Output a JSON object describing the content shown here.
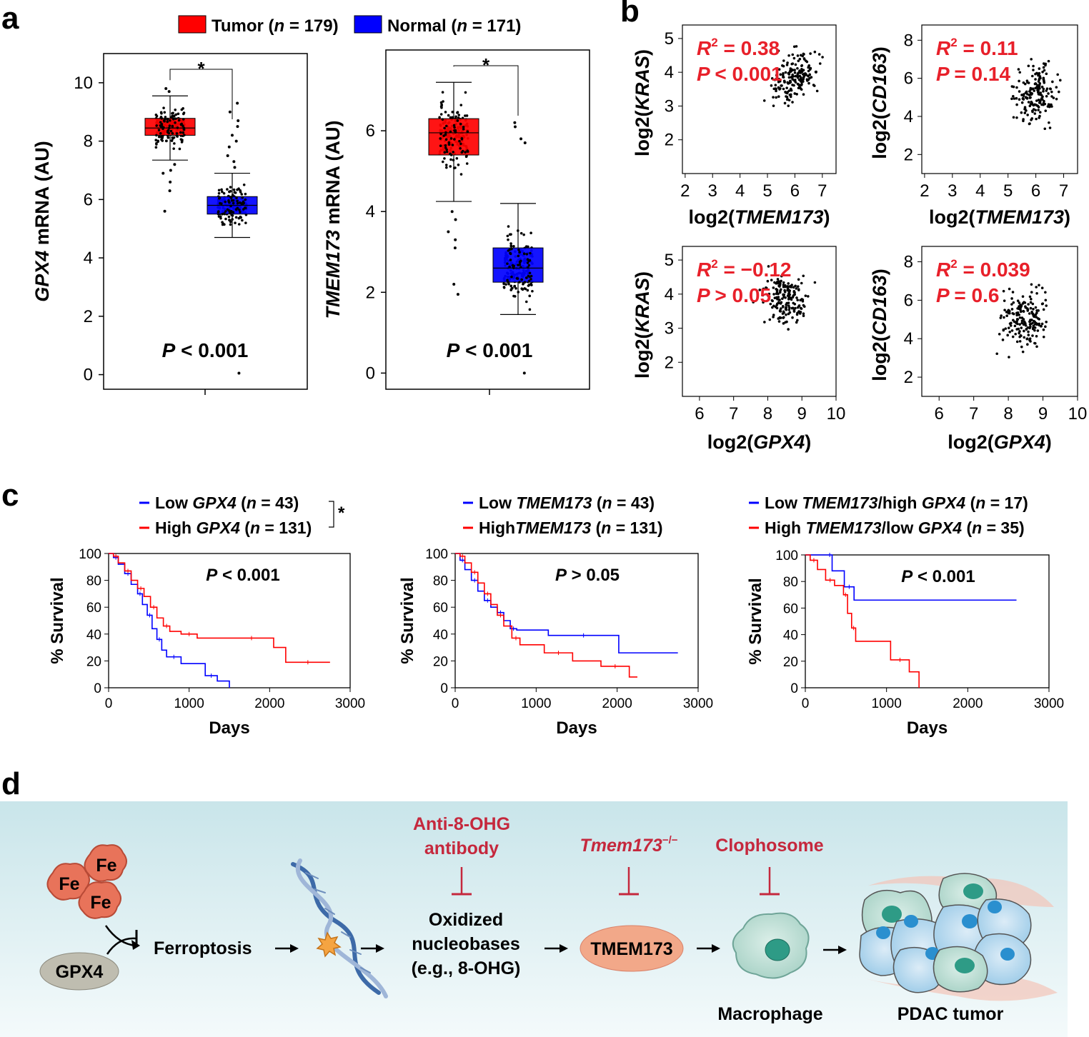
{
  "panel_labels": {
    "a": "a",
    "b": "b",
    "c": "c",
    "d": "d"
  },
  "colors": {
    "tumor": "#ff0000",
    "normal": "#0000ff",
    "annot_red": "#e8202a",
    "inhib_red": "#c5283d",
    "banner": "#d9ecf0"
  },
  "chart_data": [
    {
      "id": "a-left",
      "type": "box",
      "legend": [
        {
          "label": "Tumor (n = 179)",
          "color": "#ff0000"
        },
        {
          "label": "Normal (n = 171)",
          "color": "#0000ff"
        }
      ],
      "ylabel_italic": "GPX4",
      "ylabel_rest": " mRNA (AU)",
      "yticks": [
        "0",
        "2",
        "4",
        "6",
        "8",
        "10"
      ],
      "ylim": [
        -0.5,
        11
      ],
      "groups": [
        {
          "name": "Tumor",
          "color": "#ff0000",
          "min": 7.35,
          "q1": 8.2,
          "median": 8.45,
          "q3": 8.78,
          "max": 9.55,
          "outliers": [
            5.6,
            6.3,
            6.6,
            6.9,
            7.0,
            7.2,
            9.7,
            9.8
          ]
        },
        {
          "name": "Normal",
          "color": "#0000ff",
          "min": 4.7,
          "q1": 5.5,
          "median": 5.8,
          "q3": 6.1,
          "max": 6.9,
          "outliers": [
            0.05,
            7.1,
            7.3,
            7.5,
            7.8,
            8.0,
            8.2,
            8.5,
            8.7,
            9.0,
            9.3
          ]
        }
      ],
      "significance": "*",
      "pvalue_label": "P < 0.001"
    },
    {
      "id": "a-right",
      "type": "box",
      "ylabel_italic": "TMEM173",
      "ylabel_rest": " mRNA (AU)",
      "yticks": [
        "0",
        "2",
        "4",
        "6"
      ],
      "ylim": [
        -0.4,
        8.0
      ],
      "groups": [
        {
          "name": "Tumor",
          "color": "#ff0000",
          "min": 4.25,
          "q1": 5.4,
          "median": 5.95,
          "q3": 6.3,
          "max": 7.2,
          "outliers": [
            1.95,
            2.2,
            3.1,
            3.3,
            3.5,
            3.8,
            4.0
          ]
        },
        {
          "name": "Normal",
          "color": "#0000ff",
          "min": 1.45,
          "q1": 2.25,
          "median": 2.6,
          "q3": 3.1,
          "max": 4.2,
          "outliers": [
            0.0,
            5.7,
            5.8,
            6.1,
            6.2
          ]
        }
      ],
      "significance": "*",
      "pvalue_label": "P < 0.001"
    },
    {
      "id": "b1",
      "type": "scatter",
      "xlabel_pre": "log2(",
      "xlabel_italic": "TMEM173",
      "xlabel_post": ")",
      "ylabel_pre": "log2(",
      "ylabel_italic": "KRAS",
      "ylabel_post": ")",
      "xticks": [
        "2",
        "3",
        "4",
        "5",
        "6",
        "7"
      ],
      "yticks": [
        "2",
        "3",
        "4",
        "5"
      ],
      "xlim": [
        1.9,
        7.5
      ],
      "ylim": [
        1.0,
        5.4
      ],
      "r2_label": "= 0.38",
      "p_label": "< 0.001",
      "center": [
        6.0,
        3.9
      ],
      "spread": [
        0.6,
        0.55
      ],
      "slope": 0.4,
      "n": 180,
      "seed": 11
    },
    {
      "id": "b2",
      "type": "scatter",
      "xlabel_pre": "log2(",
      "xlabel_italic": "TMEM173",
      "xlabel_post": ")",
      "ylabel_pre": "log2(",
      "ylabel_italic": "CD163",
      "ylabel_post": ")",
      "xticks": [
        "2",
        "3",
        "4",
        "5",
        "6",
        "7"
      ],
      "yticks": [
        "2",
        "4",
        "6",
        "8"
      ],
      "xlim": [
        1.9,
        7.5
      ],
      "ylim": [
        1.0,
        8.8
      ],
      "r2_label": "= 0.11",
      "p_label": "= 0.14",
      "center": [
        6.0,
        5.2
      ],
      "spread": [
        0.6,
        1.1
      ],
      "slope": 0.4,
      "n": 180,
      "seed": 23
    },
    {
      "id": "b3",
      "type": "scatter",
      "xlabel_pre": "log2(",
      "xlabel_italic": "GPX4",
      "xlabel_post": ")",
      "ylabel_pre": "log2(",
      "ylabel_italic": "KRAS",
      "ylabel_post": ")",
      "xticks": [
        "6",
        "7",
        "8",
        "9",
        "10"
      ],
      "yticks": [
        "2",
        "3",
        "4",
        "5"
      ],
      "xlim": [
        5.5,
        10.0
      ],
      "ylim": [
        1.0,
        5.4
      ],
      "r2_label": "= −0.12",
      "p_label": "> 0.05",
      "center": [
        8.5,
        3.85
      ],
      "spread": [
        0.5,
        0.55
      ],
      "slope": -0.1,
      "n": 180,
      "seed": 37
    },
    {
      "id": "b4",
      "type": "scatter",
      "xlabel_pre": "log2(",
      "xlabel_italic": "GPX4",
      "xlabel_post": ")",
      "ylabel_pre": "log2(",
      "ylabel_italic": "CD163",
      "ylabel_post": ")",
      "xticks": [
        "6",
        "7",
        "8",
        "9",
        "10"
      ],
      "yticks": [
        "2",
        "4",
        "6",
        "8"
      ],
      "xlim": [
        5.5,
        10.0
      ],
      "ylim": [
        1.0,
        8.8
      ],
      "r2_label": "= 0.039",
      "p_label": "= 0.6",
      "center": [
        8.5,
        5.0
      ],
      "spread": [
        0.5,
        1.1
      ],
      "slope": 0.1,
      "n": 180,
      "seed": 51
    },
    {
      "id": "c1",
      "type": "line",
      "legend": [
        {
          "color": "#0000ff",
          "parts": [
            [
              "Low ",
              false
            ],
            [
              "GPX4",
              true
            ],
            [
              " (",
              false
            ],
            [
              "n",
              true
            ],
            [
              " = 43)",
              false
            ]
          ]
        },
        {
          "color": "#ff0000",
          "parts": [
            [
              "High ",
              false
            ],
            [
              "GPX4",
              true
            ],
            [
              " (",
              false
            ],
            [
              "n",
              true
            ],
            [
              " = 131)",
              false
            ]
          ]
        }
      ],
      "bracket_star": "*",
      "xticks": [
        "0",
        "1000",
        "2000",
        "3000"
      ],
      "yticks": [
        "0",
        "20",
        "40",
        "60",
        "80",
        "100"
      ],
      "xlabel": "Days",
      "ylabel": "% Survival",
      "xlim": [
        0,
        3000
      ],
      "ylim": [
        0,
        100
      ],
      "pvalue_label": "P < 0.001",
      "series": [
        {
          "name": "Low GPX4",
          "color": "#0000ff",
          "x": [
            0,
            60,
            120,
            200,
            280,
            360,
            420,
            480,
            540,
            600,
            660,
            720,
            900,
            1200,
            1350,
            1500
          ],
          "y": [
            100,
            97,
            92,
            85,
            77,
            70,
            62,
            54,
            44,
            36,
            28,
            23,
            18,
            9,
            5,
            0
          ]
        },
        {
          "name": "High GPX4",
          "color": "#ff0000",
          "x": [
            0,
            60,
            120,
            200,
            280,
            360,
            440,
            520,
            600,
            680,
            760,
            900,
            1100,
            1500,
            2050,
            2200,
            2750
          ],
          "y": [
            100,
            98,
            93,
            87,
            80,
            74,
            68,
            60,
            52,
            46,
            42,
            40,
            37,
            37,
            30,
            19,
            19
          ]
        }
      ]
    },
    {
      "id": "c2",
      "type": "line",
      "legend": [
        {
          "color": "#0000ff",
          "parts": [
            [
              "Low ",
              false
            ],
            [
              "TMEM173",
              true
            ],
            [
              " (",
              false
            ],
            [
              "n",
              true
            ],
            [
              " = 43)",
              false
            ]
          ]
        },
        {
          "color": "#ff0000",
          "parts": [
            [
              "High",
              false
            ],
            [
              "TMEM173",
              true
            ],
            [
              " (",
              false
            ],
            [
              "n",
              true
            ],
            [
              " = 131)",
              false
            ]
          ]
        }
      ],
      "xticks": [
        "0",
        "1000",
        "2000",
        "3000"
      ],
      "yticks": [
        "0",
        "20",
        "40",
        "60",
        "80",
        "100"
      ],
      "xlabel": "Days",
      "ylabel": "% Survival",
      "xlim": [
        0,
        3000
      ],
      "ylim": [
        0,
        100
      ],
      "pvalue_label": "P > 0.05",
      "series": [
        {
          "name": "Low TMEM173",
          "color": "#0000ff",
          "x": [
            0,
            60,
            120,
            200,
            280,
            360,
            440,
            520,
            600,
            680,
            760,
            1150,
            2020,
            2750
          ],
          "y": [
            100,
            95,
            88,
            80,
            72,
            65,
            60,
            56,
            50,
            44,
            43,
            39,
            26,
            26
          ]
        },
        {
          "name": "High TMEM173",
          "color": "#ff0000",
          "x": [
            0,
            60,
            120,
            200,
            280,
            360,
            440,
            520,
            600,
            700,
            800,
            1100,
            1450,
            1800,
            2150,
            2250
          ],
          "y": [
            100,
            98,
            93,
            86,
            78,
            70,
            62,
            54,
            46,
            37,
            32,
            26,
            20,
            16,
            8,
            8
          ]
        }
      ]
    },
    {
      "id": "c3",
      "type": "line",
      "legend": [
        {
          "color": "#0000ff",
          "parts": [
            [
              "Low ",
              false
            ],
            [
              "TMEM173",
              true
            ],
            [
              "/high ",
              false
            ],
            [
              "GPX4",
              true
            ],
            [
              " (",
              false
            ],
            [
              "n",
              true
            ],
            [
              " = 17)",
              false
            ]
          ]
        },
        {
          "color": "#ff0000",
          "parts": [
            [
              "High ",
              false
            ],
            [
              "TMEM173",
              true
            ],
            [
              "/low ",
              false
            ],
            [
              "GPX4",
              true
            ],
            [
              " (",
              false
            ],
            [
              "n",
              true
            ],
            [
              " = 35)",
              false
            ]
          ]
        }
      ],
      "xticks": [
        "0",
        "1000",
        "2000",
        "3000"
      ],
      "yticks": [
        "0",
        "20",
        "40",
        "60",
        "80",
        "100"
      ],
      "xlabel": "Days",
      "ylabel": "% Survival",
      "xlim": [
        0,
        3000
      ],
      "ylim": [
        0,
        100
      ],
      "pvalue_label": "P < 0.001",
      "series": [
        {
          "name": "Low TMEM173/high GPX4",
          "color": "#0000ff",
          "x": [
            0,
            270,
            330,
            480,
            600,
            2600
          ],
          "y": [
            100,
            100,
            88,
            76,
            66,
            66
          ]
        },
        {
          "name": "High TMEM173/low GPX4",
          "color": "#ff0000",
          "x": [
            0,
            60,
            150,
            250,
            360,
            470,
            520,
            570,
            620,
            1050,
            1280,
            1400
          ],
          "y": [
            100,
            96,
            89,
            81,
            77,
            70,
            56,
            45,
            35,
            21,
            12,
            0
          ]
        }
      ]
    }
  ],
  "diagram": {
    "fe_labels": [
      "Fe",
      "Fe",
      "Fe"
    ],
    "gpx4": "GPX4",
    "ferroptosis": "Ferroptosis",
    "inhibitor1": [
      "Anti-8-OHG",
      "antibody"
    ],
    "inhibitor2_italic": "Tmem173",
    "inhibitor2_sup": "−/−",
    "inhibitor3": "Clophosome",
    "oxidized": [
      "Oxidized",
      "nucleobases",
      "(e.g., 8-OHG)"
    ],
    "tmem173": "TMEM173",
    "macrophage": "Macrophage",
    "pdac": "PDAC tumor"
  }
}
